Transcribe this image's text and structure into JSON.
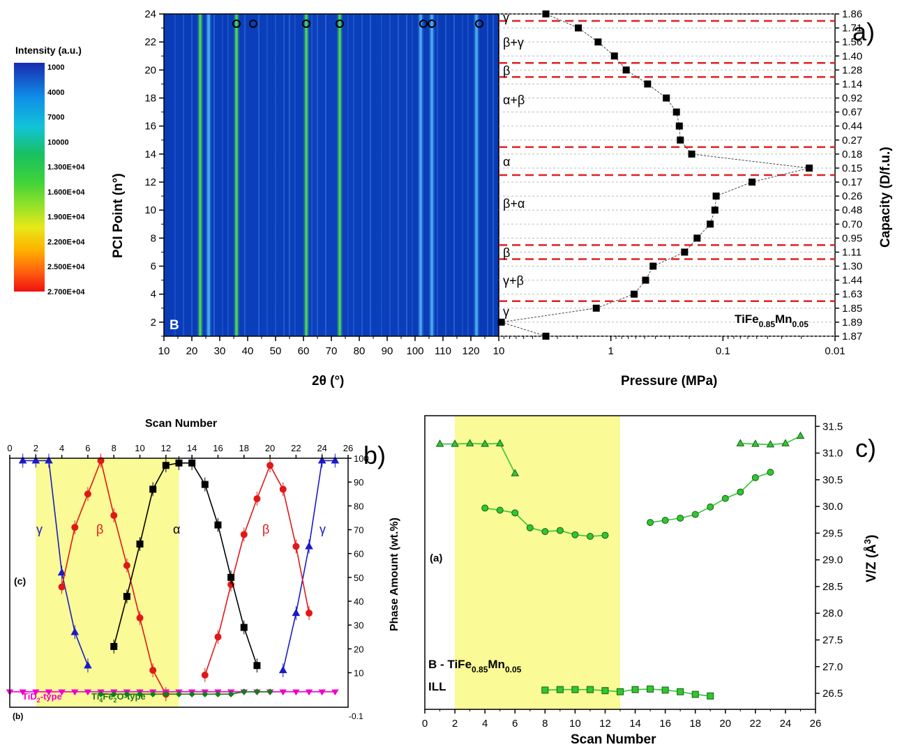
{
  "colorbar": {
    "title": "Intensity (a.u.)",
    "labels": [
      "1000",
      "4000",
      "7000",
      "10000",
      "1.300E+04",
      "1.600E+04",
      "1.900E+04",
      "2.200E+04",
      "2.500E+04",
      "2.700E+04"
    ],
    "colors": [
      "#1a2bb0",
      "#0f8ee8",
      "#12c3d8",
      "#18c060",
      "#3fd23a",
      "#8fe12a",
      "#e8e818",
      "#ffb000",
      "#ff5a10",
      "#ee1010"
    ]
  },
  "panels": {
    "a": "a)",
    "b": "b)",
    "c": "c)"
  },
  "chart_data": [
    {
      "type": "heatmap",
      "panel_letter": "B",
      "xlabel": "2θ (°)",
      "ylabel": "PCI Point (n°)",
      "xlim": [
        10,
        130
      ],
      "ylim": [
        1,
        24
      ],
      "xticks": [
        "10",
        "20",
        "30",
        "40",
        "50",
        "60",
        "70",
        "80",
        "90",
        "100",
        "110",
        "120"
      ],
      "yticks": [
        "2",
        "4",
        "6",
        "8",
        "10",
        "12",
        "14",
        "16",
        "18",
        "20",
        "22",
        "24"
      ],
      "circle_markers_2theta": [
        36,
        42,
        61,
        73,
        103,
        106,
        123
      ],
      "strong_lines_2theta": [
        23,
        26,
        36,
        61,
        73,
        102,
        106,
        122
      ]
    },
    {
      "type": "scatter",
      "xlabel": "Pressure (MPa)",
      "ylabel": "Capacity (D/f.u.)",
      "xscale": "log",
      "xlim": [
        10,
        0.01
      ],
      "xticks": [
        "10",
        "1",
        "0.1",
        "0.01"
      ],
      "capacity_labels": [
        "1.87",
        "1.89",
        "1.85",
        "1.63",
        "1.44",
        "1.30",
        "1.11",
        "0.95",
        "0.70",
        "0.48",
        "0.26",
        "0.17",
        "0.15",
        "0.18",
        "0.27",
        "0.44",
        "0.67",
        "0.92",
        "1.14",
        "1.28",
        "1.40",
        "1.56",
        "1.71",
        "1.86"
      ],
      "label": "TiFe",
      "label_sub1": "0.85",
      "label_mid": "Mn",
      "label_sub2": "0.05",
      "points": [
        {
          "pci": 1,
          "pressure": 3.8
        },
        {
          "pci": 2,
          "pressure": 9.5
        },
        {
          "pci": 3,
          "pressure": 1.35
        },
        {
          "pci": 4,
          "pressure": 0.62
        },
        {
          "pci": 5,
          "pressure": 0.49
        },
        {
          "pci": 6,
          "pressure": 0.42
        },
        {
          "pci": 7,
          "pressure": 0.22
        },
        {
          "pci": 8,
          "pressure": 0.17
        },
        {
          "pci": 9,
          "pressure": 0.13
        },
        {
          "pci": 10,
          "pressure": 0.118
        },
        {
          "pci": 11,
          "pressure": 0.115
        },
        {
          "pci": 12,
          "pressure": 0.055
        },
        {
          "pci": 13,
          "pressure": 0.017
        },
        {
          "pci": 14,
          "pressure": 0.19
        },
        {
          "pci": 15,
          "pressure": 0.24
        },
        {
          "pci": 16,
          "pressure": 0.245
        },
        {
          "pci": 17,
          "pressure": 0.26
        },
        {
          "pci": 18,
          "pressure": 0.32
        },
        {
          "pci": 19,
          "pressure": 0.47
        },
        {
          "pci": 20,
          "pressure": 0.73
        },
        {
          "pci": 21,
          "pressure": 0.93
        },
        {
          "pci": 22,
          "pressure": 1.3
        },
        {
          "pci": 23,
          "pressure": 1.95
        },
        {
          "pci": 24,
          "pressure": 3.8
        }
      ],
      "phase_boundaries_pci": [
        3.5,
        6.5,
        7.5,
        12.5,
        14.5,
        19.5,
        20.5,
        23.5
      ],
      "phase_regions": [
        {
          "label": "γ",
          "pci": 2.8
        },
        {
          "label": "γ+β",
          "pci": 5.0
        },
        {
          "label": "β",
          "pci": 7.0
        },
        {
          "label": "β+α",
          "pci": 10.5
        },
        {
          "label": "α",
          "pci": 13.5
        },
        {
          "label": "α+β",
          "pci": 17.9
        },
        {
          "label": "β",
          "pci": 20.0
        },
        {
          "label": "β+γ",
          "pci": 22.0
        },
        {
          "label": "γ",
          "pci": 23.8
        }
      ]
    },
    {
      "type": "line",
      "xlabel": "Scan Number",
      "ylabel": "Phase Amount (wt.%)",
      "xlim": [
        0,
        26
      ],
      "ylim": [
        0,
        100
      ],
      "xticks": [
        "0",
        "2",
        "4",
        "6",
        "8",
        "10",
        "12",
        "14",
        "16",
        "18",
        "20",
        "22",
        "24",
        "26"
      ],
      "yticks": [
        "10",
        "20",
        "30",
        "40",
        "50",
        "60",
        "70",
        "80",
        "90",
        "100"
      ],
      "highlight_x": [
        2,
        13
      ],
      "inner_label": "(c)",
      "bottom_label": "(b)",
      "bottom_tick": "-0.1",
      "series": [
        {
          "label": "γ",
          "color": "#1a1ac8",
          "marker": "triangle-up",
          "x": [
            1,
            2,
            3,
            4,
            5,
            6
          ],
          "y": [
            99,
            99,
            99,
            52,
            27,
            13
          ]
        },
        {
          "label": "γ",
          "color": "#1a1ac8",
          "marker": "triangle-up",
          "x": [
            21,
            22,
            23,
            24,
            25
          ],
          "y": [
            11,
            35,
            63,
            99,
            99
          ]
        },
        {
          "label": "β",
          "color": "#e01818",
          "marker": "circle",
          "x": [
            4,
            5,
            6,
            7,
            8,
            9,
            10,
            11,
            12
          ],
          "y": [
            46,
            71,
            85,
            99,
            76,
            55,
            33,
            11,
            1
          ]
        },
        {
          "label": "β",
          "color": "#e01818",
          "marker": "circle",
          "x": [
            15,
            16,
            17,
            18,
            19,
            20,
            21,
            22,
            23
          ],
          "y": [
            9,
            25,
            47,
            68,
            83,
            97,
            87,
            63,
            35
          ]
        },
        {
          "label": "α",
          "color": "#000000",
          "marker": "square",
          "x": [
            8,
            9,
            10,
            11,
            12,
            13,
            14,
            15,
            16,
            17,
            18,
            19
          ],
          "y": [
            21,
            42,
            64,
            87,
            97,
            98,
            98,
            89,
            72,
            50,
            29,
            13
          ]
        },
        {
          "label": "TiD2-type",
          "label_main": "TiD",
          "label_sub": "2",
          "label_rest": "-type",
          "color": "#ee00cc",
          "marker": "triangle-down",
          "x": [
            0,
            1,
            2,
            3,
            4,
            5,
            6,
            7,
            8,
            9,
            10,
            11,
            12,
            13,
            14,
            15,
            16,
            17,
            18,
            19,
            20,
            21,
            22,
            23,
            24,
            25
          ],
          "y": [
            2,
            2,
            2,
            2,
            2,
            2,
            2,
            2,
            2,
            2,
            2,
            2,
            2,
            2,
            2,
            2,
            2,
            2,
            2,
            2,
            2,
            2,
            2,
            2,
            2,
            2
          ]
        },
        {
          "label": "Ti4Fe2O-type",
          "label_a": "Ti",
          "label_sub_a": "4",
          "label_b": "Fe",
          "label_sub_b": "2",
          "label_rest": "O-type",
          "color": "#1a7a1a",
          "marker": "diamond",
          "x": [
            7,
            8,
            9,
            10,
            11,
            12,
            13,
            14,
            15,
            16,
            17,
            18,
            19,
            20
          ],
          "y": [
            1,
            1,
            1,
            1,
            1,
            1,
            1,
            1,
            1,
            1,
            1,
            2,
            2,
            2
          ]
        }
      ]
    },
    {
      "type": "line",
      "xlabel": "Scan Number",
      "ylabel": "V/Z (Å",
      "ylabel_sup": "3",
      "ylabel_end": ")",
      "xlim": [
        0,
        26
      ],
      "ylim": [
        26.2,
        31.7
      ],
      "xticks": [
        "0",
        "2",
        "4",
        "6",
        "8",
        "10",
        "12",
        "14",
        "16",
        "18",
        "20",
        "22",
        "24",
        "26"
      ],
      "yticks": [
        "26.5",
        "27.0",
        "27.5",
        "28.0",
        "28.5",
        "29.0",
        "29.5",
        "30.0",
        "30.5",
        "31.0",
        "31.5"
      ],
      "highlight_x": [
        2,
        13
      ],
      "inner_label": "(a)",
      "sample_label": "B - TiFe",
      "sample_sub1": "0.85",
      "sample_mid": "Mn",
      "sample_sub2": "0.05",
      "instrument_label": "ILL",
      "color": "#2ec82e",
      "series": [
        {
          "marker": "triangle-up",
          "x": [
            1,
            2,
            3,
            4,
            5,
            6
          ],
          "y": [
            31.17,
            31.17,
            31.18,
            31.17,
            31.18,
            30.62
          ]
        },
        {
          "marker": "triangle-up",
          "x": [
            21,
            22,
            23,
            24,
            25
          ],
          "y": [
            31.18,
            31.17,
            31.16,
            31.18,
            31.32
          ]
        },
        {
          "marker": "circle",
          "x": [
            4,
            5,
            6,
            7,
            8,
            9,
            10,
            11,
            12
          ],
          "y": [
            29.97,
            29.93,
            29.88,
            29.6,
            29.53,
            29.55,
            29.47,
            29.44,
            29.46
          ]
        },
        {
          "marker": "circle",
          "x": [
            15,
            16,
            17,
            18,
            19,
            20,
            21,
            22,
            23
          ],
          "y": [
            29.7,
            29.74,
            29.78,
            29.85,
            29.99,
            30.15,
            30.27,
            30.54,
            30.64
          ]
        },
        {
          "marker": "square",
          "x": [
            8,
            9,
            10,
            11,
            12,
            13,
            14,
            15,
            16,
            17,
            18,
            19
          ],
          "y": [
            26.56,
            26.57,
            26.57,
            26.57,
            26.55,
            26.53,
            26.57,
            26.58,
            26.56,
            26.53,
            26.48,
            26.45
          ]
        }
      ]
    }
  ]
}
